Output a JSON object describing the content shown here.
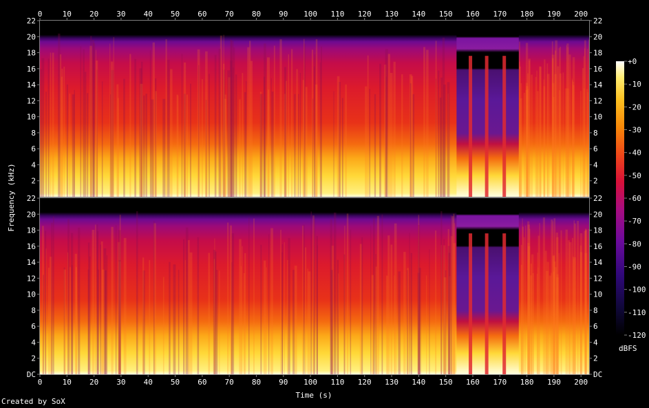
{
  "credit": "Created by SoX",
  "chart_data": {
    "type": "heatmap",
    "xlabel": "Time (s)",
    "ylabel": "Frequency (kHz)",
    "xlim": [
      0,
      203
    ],
    "ylim": [
      0,
      22
    ],
    "x_ticks": [
      0,
      10,
      20,
      30,
      40,
      50,
      60,
      70,
      80,
      90,
      100,
      110,
      120,
      130,
      140,
      150,
      160,
      170,
      180,
      190,
      200
    ],
    "y_ticks_channel1": [
      {
        "value": 2,
        "label": "2"
      },
      {
        "value": 4,
        "label": "4"
      },
      {
        "value": 6,
        "label": "6"
      },
      {
        "value": 8,
        "label": "8"
      },
      {
        "value": 10,
        "label": "10"
      },
      {
        "value": 12,
        "label": "12"
      },
      {
        "value": 14,
        "label": "14"
      },
      {
        "value": 16,
        "label": "16"
      },
      {
        "value": 18,
        "label": "18"
      },
      {
        "value": 20,
        "label": "20"
      },
      {
        "value": 22,
        "label": "22"
      }
    ],
    "y_ticks_channel2": [
      {
        "value": 0,
        "label": "DC"
      },
      {
        "value": 2,
        "label": "2"
      },
      {
        "value": 4,
        "label": "4"
      },
      {
        "value": 6,
        "label": "6"
      },
      {
        "value": 8,
        "label": "8"
      },
      {
        "value": 10,
        "label": "10"
      },
      {
        "value": 12,
        "label": "12"
      },
      {
        "value": 14,
        "label": "14"
      },
      {
        "value": 16,
        "label": "16"
      },
      {
        "value": 18,
        "label": "18"
      },
      {
        "value": 20,
        "label": "20"
      },
      {
        "value": 22,
        "label": "22"
      }
    ],
    "colorbar": {
      "label": "dBFS",
      "range": [
        -120,
        0
      ],
      "ticks": [
        {
          "value": 0,
          "label": "+0"
        },
        {
          "value": -10,
          "label": "-10"
        },
        {
          "value": -20,
          "label": "-20"
        },
        {
          "value": -30,
          "label": "-30"
        },
        {
          "value": -40,
          "label": "-40"
        },
        {
          "value": -50,
          "label": "-50"
        },
        {
          "value": -60,
          "label": "-60"
        },
        {
          "value": -70,
          "label": "-70"
        },
        {
          "value": -80,
          "label": "-80"
        },
        {
          "value": -90,
          "label": "-90"
        },
        {
          "value": -100,
          "label": "-100"
        },
        {
          "value": -110,
          "label": "-110"
        },
        {
          "value": -120,
          "label": "-120"
        }
      ],
      "colors": [
        "#000000",
        "#20004a",
        "#5a0aa0",
        "#9a1090",
        "#d01040",
        "#f03818",
        "#f87a08",
        "#fcb010",
        "#ffe040",
        "#ffffff"
      ]
    },
    "channels": 2,
    "description_levels": {
      "cutoff_khz": 19.5,
      "quiet_segments_s": [
        [
          154,
          177
        ]
      ]
    }
  }
}
